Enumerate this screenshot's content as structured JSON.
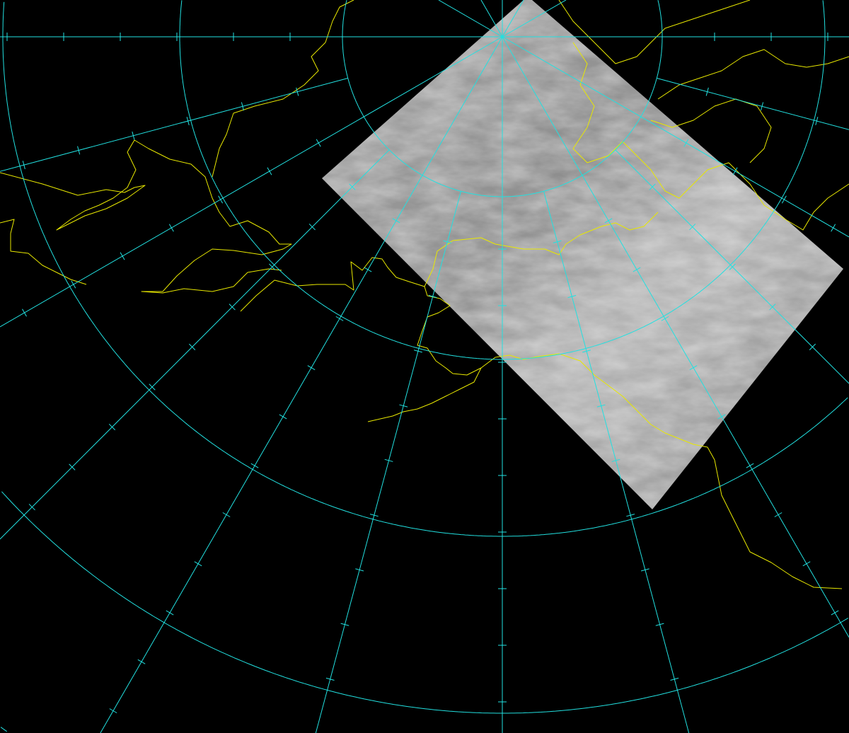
{
  "map": {
    "projection": "polar-stereographic",
    "colors": {
      "background": "#000000",
      "graticule": "#22e0e0",
      "coastline": "#e8e800",
      "imagery": "#9a9a9a"
    },
    "layers": [
      "satellite-imagery-swath",
      "coastlines",
      "graticule"
    ]
  }
}
